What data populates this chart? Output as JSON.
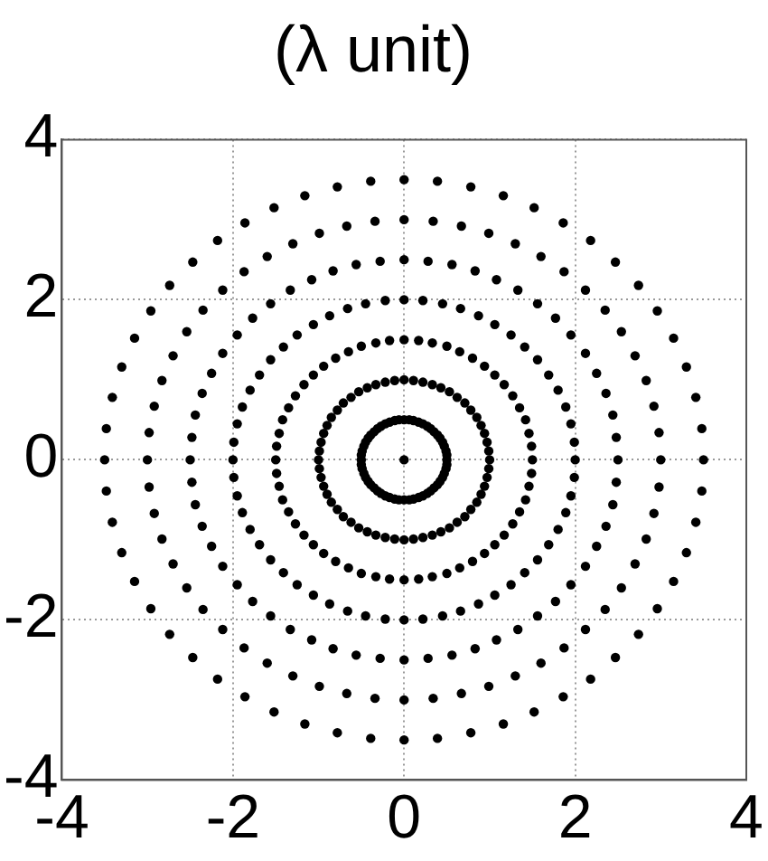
{
  "chart_data": {
    "type": "scatter",
    "title": "(λ unit)",
    "xlim": [
      -4,
      4
    ],
    "ylim": [
      -4,
      4
    ],
    "xticks": [
      -4,
      -2,
      0,
      2,
      4
    ],
    "yticks": [
      -4,
      -2,
      0,
      2,
      4
    ],
    "grid": true,
    "legend": false,
    "marker": "circle",
    "series": [
      {
        "color": "#000000",
        "x": [
          0
        ],
        "values": [
          0
        ]
      },
      {
        "color": "#000000",
        "x": [
          0.5,
          0.5,
          0.49,
          0.47,
          0.45,
          0.42,
          0.39,
          0.35,
          0.31,
          0.27,
          0.22,
          0.17,
          0.11,
          0.06,
          0,
          -0.06,
          -0.11,
          -0.17,
          -0.22,
          -0.27,
          -0.31,
          -0.35,
          -0.39,
          -0.42,
          -0.45,
          -0.47,
          -0.49,
          -0.5,
          -0.5,
          -0.5,
          -0.49,
          -0.47,
          -0.45,
          -0.42,
          -0.39,
          -0.35,
          -0.31,
          -0.27,
          -0.22,
          -0.17,
          -0.11,
          -0.06,
          0,
          0.06,
          0.11,
          0.17,
          0.22,
          0.27,
          0.31,
          0.35,
          0.39,
          0.42,
          0.45,
          0.47,
          0.49,
          0.5
        ],
        "values": [
          0,
          0.06,
          0.11,
          0.17,
          0.22,
          0.27,
          0.31,
          0.35,
          0.39,
          0.42,
          0.45,
          0.47,
          0.49,
          0.5,
          0.5,
          0.5,
          0.49,
          0.47,
          0.45,
          0.42,
          0.39,
          0.35,
          0.31,
          0.27,
          0.22,
          0.17,
          0.11,
          0.06,
          0,
          -0.06,
          -0.11,
          -0.17,
          -0.22,
          -0.27,
          -0.31,
          -0.35,
          -0.39,
          -0.42,
          -0.45,
          -0.47,
          -0.49,
          -0.5,
          -0.5,
          -0.5,
          -0.49,
          -0.47,
          -0.45,
          -0.42,
          -0.39,
          -0.35,
          -0.31,
          -0.27,
          -0.22,
          -0.17,
          -0.11,
          -0.06
        ]
      },
      {
        "color": "#000000",
        "x": [
          1,
          0.99,
          0.97,
          0.94,
          0.9,
          0.85,
          0.78,
          0.71,
          0.62,
          0.53,
          0.43,
          0.33,
          0.22,
          0.11,
          0,
          -0.11,
          -0.22,
          -0.33,
          -0.43,
          -0.53,
          -0.62,
          -0.71,
          -0.78,
          -0.85,
          -0.9,
          -0.94,
          -0.97,
          -0.99,
          -1,
          -0.99,
          -0.97,
          -0.94,
          -0.9,
          -0.85,
          -0.78,
          -0.71,
          -0.62,
          -0.53,
          -0.43,
          -0.33,
          -0.22,
          -0.11,
          0,
          0.11,
          0.22,
          0.33,
          0.43,
          0.53,
          0.62,
          0.71,
          0.78,
          0.85,
          0.9,
          0.94,
          0.97,
          0.99
        ],
        "values": [
          0,
          0.11,
          0.22,
          0.33,
          0.43,
          0.53,
          0.62,
          0.71,
          0.78,
          0.85,
          0.9,
          0.94,
          0.97,
          0.99,
          1,
          0.99,
          0.97,
          0.94,
          0.9,
          0.85,
          0.78,
          0.71,
          0.62,
          0.53,
          0.43,
          0.33,
          0.22,
          0.11,
          0,
          -0.11,
          -0.22,
          -0.33,
          -0.43,
          -0.53,
          -0.62,
          -0.71,
          -0.78,
          -0.85,
          -0.9,
          -0.94,
          -0.97,
          -0.99,
          -1,
          -0.99,
          -0.97,
          -0.94,
          -0.9,
          -0.85,
          -0.78,
          -0.71,
          -0.62,
          -0.53,
          -0.43,
          -0.33,
          -0.22,
          -0.11
        ]
      },
      {
        "color": "#000000",
        "x": [
          1.5,
          1.49,
          1.46,
          1.42,
          1.35,
          1.27,
          1.17,
          1.06,
          0.94,
          0.8,
          0.65,
          0.5,
          0.33,
          0.17,
          0,
          -0.17,
          -0.33,
          -0.5,
          -0.65,
          -0.8,
          -0.94,
          -1.06,
          -1.17,
          -1.27,
          -1.35,
          -1.42,
          -1.46,
          -1.49,
          -1.5,
          -1.49,
          -1.46,
          -1.42,
          -1.35,
          -1.27,
          -1.17,
          -1.06,
          -0.94,
          -0.8,
          -0.65,
          -0.5,
          -0.33,
          -0.17,
          0,
          0.17,
          0.33,
          0.5,
          0.65,
          0.8,
          0.94,
          1.06,
          1.17,
          1.27,
          1.35,
          1.42,
          1.46,
          1.49
        ],
        "values": [
          0,
          0.17,
          0.33,
          0.5,
          0.65,
          0.8,
          0.94,
          1.06,
          1.17,
          1.27,
          1.35,
          1.42,
          1.46,
          1.49,
          1.5,
          1.49,
          1.46,
          1.42,
          1.35,
          1.27,
          1.17,
          1.06,
          0.94,
          0.8,
          0.65,
          0.5,
          0.33,
          0.17,
          0,
          -0.17,
          -0.33,
          -0.5,
          -0.65,
          -0.8,
          -0.94,
          -1.06,
          -1.17,
          -1.27,
          -1.35,
          -1.42,
          -1.46,
          -1.49,
          -1.5,
          -1.49,
          -1.46,
          -1.42,
          -1.35,
          -1.27,
          -1.17,
          -1.06,
          -0.94,
          -0.8,
          -0.65,
          -0.5,
          -0.33,
          -0.17
        ]
      },
      {
        "color": "#000000",
        "x": [
          2,
          1.99,
          1.95,
          1.89,
          1.8,
          1.69,
          1.56,
          1.41,
          1.25,
          1.06,
          0.87,
          0.66,
          0.45,
          0.22,
          0,
          -0.22,
          -0.45,
          -0.66,
          -0.87,
          -1.06,
          -1.25,
          -1.41,
          -1.56,
          -1.69,
          -1.8,
          -1.89,
          -1.95,
          -1.99,
          -2,
          -1.99,
          -1.95,
          -1.89,
          -1.8,
          -1.69,
          -1.56,
          -1.41,
          -1.25,
          -1.06,
          -0.87,
          -0.66,
          -0.45,
          -0.22,
          0,
          0.22,
          0.45,
          0.66,
          0.87,
          1.06,
          1.25,
          1.41,
          1.56,
          1.69,
          1.8,
          1.89,
          1.95,
          1.99
        ],
        "values": [
          0,
          0.22,
          0.45,
          0.66,
          0.87,
          1.06,
          1.25,
          1.41,
          1.56,
          1.69,
          1.8,
          1.89,
          1.95,
          1.99,
          2,
          1.99,
          1.95,
          1.89,
          1.8,
          1.69,
          1.56,
          1.41,
          1.25,
          1.06,
          0.87,
          0.66,
          0.45,
          0.22,
          0,
          -0.22,
          -0.45,
          -0.66,
          -0.87,
          -1.06,
          -1.25,
          -1.41,
          -1.56,
          -1.69,
          -1.8,
          -1.89,
          -1.95,
          -1.99,
          -2,
          -1.99,
          -1.95,
          -1.89,
          -1.8,
          -1.69,
          -1.56,
          -1.41,
          -1.25,
          -1.06,
          -0.87,
          -0.66,
          -0.45,
          -0.22
        ]
      },
      {
        "color": "#000000",
        "x": [
          2.5,
          2.48,
          2.44,
          2.36,
          2.25,
          2.12,
          1.95,
          1.77,
          1.56,
          1.33,
          1.08,
          0.83,
          0.56,
          0.28,
          0,
          -0.28,
          -0.56,
          -0.83,
          -1.08,
          -1.33,
          -1.56,
          -1.77,
          -1.95,
          -2.12,
          -2.25,
          -2.36,
          -2.44,
          -2.48,
          -2.5,
          -2.48,
          -2.44,
          -2.36,
          -2.25,
          -2.12,
          -1.95,
          -1.77,
          -1.56,
          -1.33,
          -1.08,
          -0.83,
          -0.56,
          -0.28,
          0,
          0.28,
          0.56,
          0.83,
          1.08,
          1.33,
          1.56,
          1.77,
          1.95,
          2.12,
          2.25,
          2.36,
          2.44,
          2.48
        ],
        "values": [
          0,
          0.28,
          0.56,
          0.83,
          1.08,
          1.33,
          1.56,
          1.77,
          1.95,
          2.12,
          2.25,
          2.36,
          2.44,
          2.48,
          2.5,
          2.48,
          2.44,
          2.36,
          2.25,
          2.12,
          1.95,
          1.77,
          1.56,
          1.33,
          1.08,
          0.83,
          0.56,
          0.28,
          0,
          -0.28,
          -0.56,
          -0.83,
          -1.08,
          -1.33,
          -1.56,
          -1.77,
          -1.95,
          -2.12,
          -2.25,
          -2.36,
          -2.44,
          -2.48,
          -2.5,
          -2.48,
          -2.44,
          -2.36,
          -2.25,
          -2.12,
          -1.95,
          -1.77,
          -1.56,
          -1.33,
          -1.08,
          -0.83,
          -0.56,
          -0.28
        ]
      },
      {
        "color": "#000000",
        "x": [
          3,
          2.98,
          2.92,
          2.83,
          2.7,
          2.54,
          2.35,
          2.12,
          1.87,
          1.6,
          1.3,
          0.99,
          0.67,
          0.34,
          0,
          -0.34,
          -0.67,
          -0.99,
          -1.3,
          -1.6,
          -1.87,
          -2.12,
          -2.35,
          -2.54,
          -2.7,
          -2.83,
          -2.92,
          -2.98,
          -3,
          -2.98,
          -2.92,
          -2.83,
          -2.7,
          -2.54,
          -2.35,
          -2.12,
          -1.87,
          -1.6,
          -1.3,
          -0.99,
          -0.67,
          -0.34,
          0,
          0.34,
          0.67,
          0.99,
          1.3,
          1.6,
          1.87,
          2.12,
          2.35,
          2.54,
          2.7,
          2.83,
          2.92,
          2.98
        ],
        "values": [
          0,
          0.34,
          0.67,
          0.99,
          1.3,
          1.6,
          1.87,
          2.12,
          2.35,
          2.54,
          2.7,
          2.83,
          2.92,
          2.98,
          3,
          2.98,
          2.92,
          2.83,
          2.7,
          2.54,
          2.35,
          2.12,
          1.87,
          1.6,
          1.3,
          0.99,
          0.67,
          0.34,
          0,
          -0.34,
          -0.67,
          -0.99,
          -1.3,
          -1.6,
          -1.87,
          -2.12,
          -2.35,
          -2.54,
          -2.7,
          -2.83,
          -2.92,
          -2.98,
          -3,
          -2.98,
          -2.92,
          -2.83,
          -2.7,
          -2.54,
          -2.35,
          -2.12,
          -1.87,
          -1.6,
          -1.3,
          -0.99,
          -0.67,
          -0.34
        ]
      },
      {
        "color": "#000000",
        "x": [
          3.5,
          3.48,
          3.41,
          3.3,
          3.15,
          2.96,
          2.74,
          2.47,
          2.18,
          1.86,
          1.52,
          1.16,
          0.78,
          0.39,
          0,
          -0.39,
          -0.78,
          -1.16,
          -1.52,
          -1.86,
          -2.18,
          -2.47,
          -2.74,
          -2.96,
          -3.15,
          -3.3,
          -3.41,
          -3.48,
          -3.5,
          -3.48,
          -3.41,
          -3.3,
          -3.15,
          -2.96,
          -2.74,
          -2.47,
          -2.18,
          -1.86,
          -1.52,
          -1.16,
          -0.78,
          -0.39,
          0,
          0.39,
          0.78,
          1.16,
          1.52,
          1.86,
          2.18,
          2.47,
          2.74,
          2.96,
          3.15,
          3.3,
          3.41,
          3.48
        ],
        "values": [
          0,
          0.39,
          0.78,
          1.16,
          1.52,
          1.86,
          2.18,
          2.47,
          2.74,
          2.96,
          3.15,
          3.3,
          3.41,
          3.48,
          3.5,
          3.48,
          3.41,
          3.3,
          3.15,
          2.96,
          2.74,
          2.47,
          2.18,
          1.86,
          1.52,
          1.16,
          0.78,
          0.39,
          0,
          -0.39,
          -0.78,
          -1.16,
          -1.52,
          -1.86,
          -2.18,
          -2.47,
          -2.74,
          -2.96,
          -3.15,
          -3.3,
          -3.41,
          -3.48,
          -3.5,
          -3.48,
          -3.41,
          -3.3,
          -3.15,
          -2.96,
          -2.74,
          -2.47,
          -2.18,
          -1.86,
          -1.52,
          -1.16,
          -0.78,
          -0.39
        ]
      }
    ]
  }
}
